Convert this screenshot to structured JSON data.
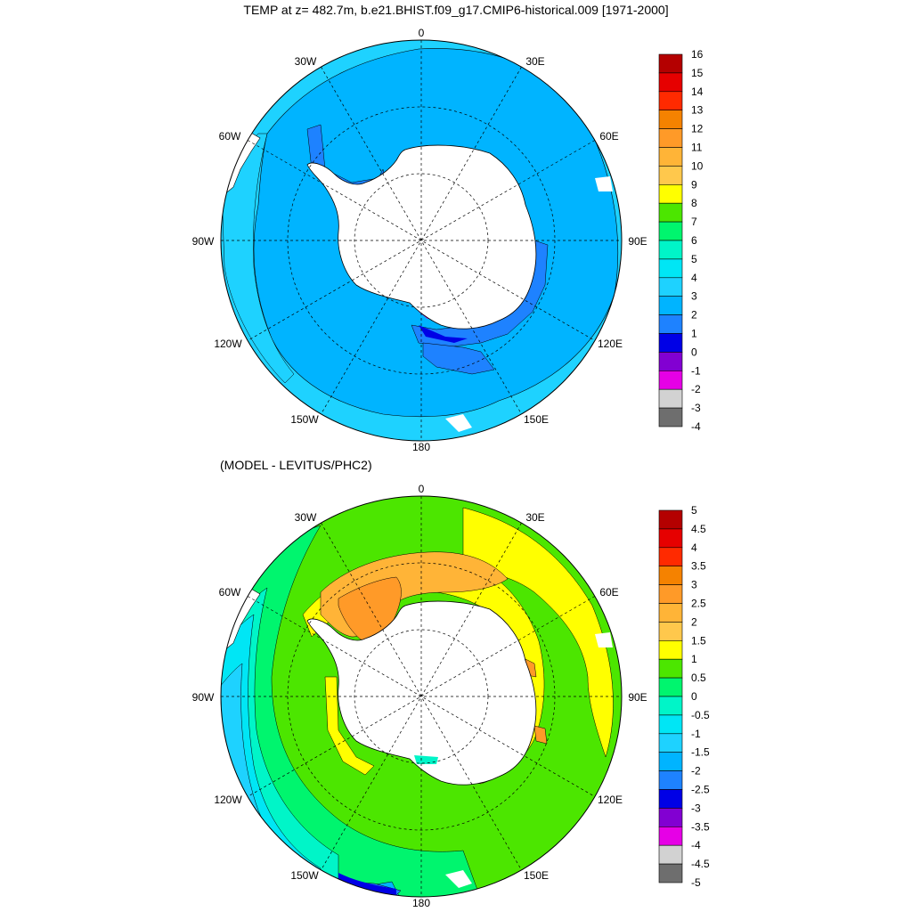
{
  "top_panel": {
    "title": "TEMP at z= 482.7m, b.e21.BHIST.f09_g17.CMIP6-historical.009 [1971-2000]",
    "colorbar_labels": [
      "16",
      "15",
      "14",
      "13",
      "12",
      "11",
      "10",
      "9",
      "8",
      "7",
      "6",
      "5",
      "4",
      "3",
      "2",
      "1",
      "0",
      "-1",
      "-2",
      "-3",
      "-4"
    ],
    "colorbar_colors": [
      "#b40000",
      "#e60000",
      "#ff2a00",
      "#f58200",
      "#ff9a28",
      "#ffb437",
      "#ffc84c",
      "#ffff00",
      "#4ce600",
      "#00f56e",
      "#00f5c8",
      "#00e6f5",
      "#1ed2ff",
      "#00b4ff",
      "#1e82ff",
      "#0000e6",
      "#8200d2",
      "#e600e6",
      "#d2d2d2",
      "#6e6e6e"
    ]
  },
  "bottom_panel": {
    "title": "(MODEL - LEVITUS/PHC2)",
    "colorbar_labels": [
      "5",
      "4.5",
      "4",
      "3.5",
      "3",
      "2.5",
      "2",
      "1.5",
      "1",
      "0.5",
      "0",
      "-0.5",
      "-1",
      "-1.5",
      "-2",
      "-2.5",
      "-3",
      "-3.5",
      "-4",
      "-4.5",
      "-5"
    ],
    "colorbar_colors": [
      "#b40000",
      "#e60000",
      "#ff2a00",
      "#f58200",
      "#ff9a28",
      "#ffb437",
      "#ffc84c",
      "#ffff00",
      "#4ce600",
      "#00f56e",
      "#00f5c8",
      "#00e6f5",
      "#1ed2ff",
      "#00b4ff",
      "#1e82ff",
      "#0000e6",
      "#8200d2",
      "#e600e6",
      "#d2d2d2",
      "#6e6e6e"
    ]
  },
  "map_labels": {
    "lon_0": "0",
    "lon_30e": "30E",
    "lon_60e": "60E",
    "lon_90e": "90E",
    "lon_120e": "120E",
    "lon_150e": "150E",
    "lon_180": "180",
    "lon_150w": "150W",
    "lon_120w": "120W",
    "lon_90w": "90W",
    "lon_60w": "60W",
    "lon_30w": "30W"
  }
}
